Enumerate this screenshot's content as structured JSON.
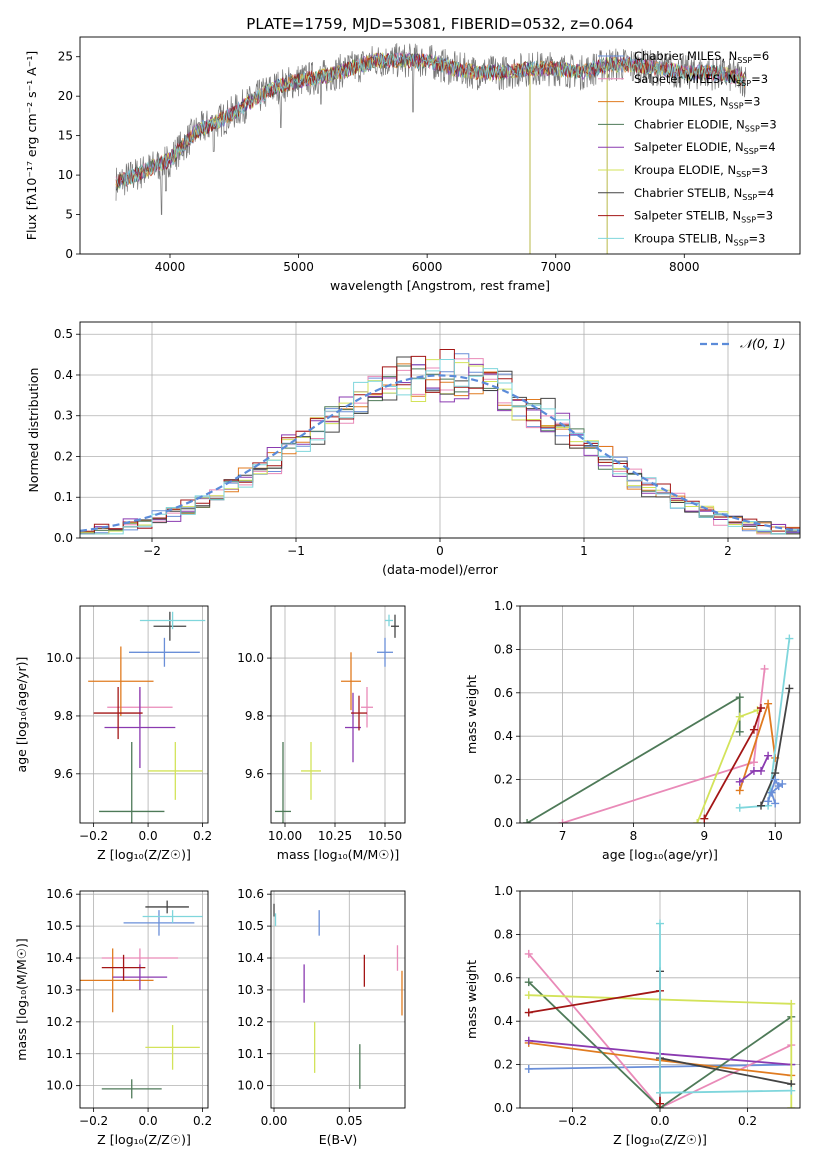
{
  "figure_title": "PLATE=1759, MJD=53081, FIBERID=0532, z=0.064",
  "colors": {
    "Chabrier MILES": "#6a8fd8",
    "Salpeter MILES": "#e98ab8",
    "Kroupa MILES": "#e07b20",
    "Chabrier ELODIE": "#4e7a58",
    "Salpeter ELODIE": "#8a3ab0",
    "Kroupa ELODIE": "#d3e35a",
    "Chabrier STELIB": "#444444",
    "Salpeter STELIB": "#a31616",
    "Kroupa STELIB": "#7fd6dc"
  },
  "legend_entries": [
    {
      "name": "Chabrier MILES",
      "nssp": "6"
    },
    {
      "name": "Salpeter MILES",
      "nssp": "3"
    },
    {
      "name": "Kroupa MILES",
      "nssp": "3"
    },
    {
      "name": "Chabrier ELODIE",
      "nssp": "3"
    },
    {
      "name": "Salpeter ELODIE",
      "nssp": "4"
    },
    {
      "name": "Kroupa ELODIE",
      "nssp": "3"
    },
    {
      "name": "Chabrier STELIB",
      "nssp": "4"
    },
    {
      "name": "Salpeter STELIB",
      "nssp": "3"
    },
    {
      "name": "Kroupa STELIB",
      "nssp": "3"
    }
  ],
  "chart_data": [
    {
      "id": "spectrum",
      "type": "line",
      "xlabel": "wavelength [Angstrom, rest frame]",
      "ylabel": "Flux [fλ10⁻¹⁷ erg cm⁻² s⁻¹ A⁻¹]",
      "xlim": [
        3300,
        8900
      ],
      "ylim": [
        0,
        27.5
      ],
      "xticks": [
        4000,
        5000,
        6000,
        7000,
        8000
      ],
      "yticks": [
        0,
        5,
        10,
        15,
        20,
        25
      ],
      "continuum": [
        [
          3580,
          9
        ],
        [
          3800,
          10.5
        ],
        [
          4000,
          12
        ],
        [
          4200,
          15.5
        ],
        [
          4400,
          17
        ],
        [
          4600,
          19
        ],
        [
          4800,
          21
        ],
        [
          5000,
          22
        ],
        [
          5200,
          22.5
        ],
        [
          5400,
          23.5
        ],
        [
          5600,
          24.5
        ],
        [
          5800,
          24.5
        ],
        [
          6000,
          24.5
        ],
        [
          6200,
          23.5
        ],
        [
          6400,
          23
        ],
        [
          6600,
          23
        ],
        [
          6800,
          23.5
        ],
        [
          7000,
          23.5
        ],
        [
          7200,
          23
        ],
        [
          7400,
          24
        ],
        [
          7600,
          24
        ],
        [
          7800,
          23.5
        ],
        [
          8000,
          23
        ],
        [
          8200,
          23
        ],
        [
          8400,
          22.5
        ],
        [
          8480,
          22
        ]
      ],
      "absorption_lines": [
        [
          3934,
          5
        ],
        [
          3968,
          8
        ],
        [
          4102,
          14
        ],
        [
          4340,
          13
        ],
        [
          4861,
          16
        ],
        [
          5175,
          19
        ],
        [
          5890,
          18
        ],
        [
          6563,
          21
        ],
        [
          6800,
          0
        ],
        [
          7400,
          0
        ],
        [
          6875,
          21.5
        ],
        [
          7600,
          22
        ]
      ]
    },
    {
      "id": "residuals",
      "type": "step",
      "xlabel": "(data-model)/error",
      "ylabel": "Normed distribution",
      "xlim": [
        -2.5,
        2.5
      ],
      "ylim": [
        0,
        0.53
      ],
      "xticks": [
        -2,
        -1,
        0,
        1,
        2
      ],
      "yticks": [
        0.0,
        0.1,
        0.2,
        0.3,
        0.4,
        0.5
      ],
      "legend_label": "𝒩(0, 1)",
      "bin_width": 0.1,
      "bin_start": -2.5
    },
    {
      "id": "age_vs_Z",
      "type": "scatter",
      "xlabel": "Z [log₁₀(Z/Z☉)]",
      "ylabel": "age  [log₁₀(age/yr)]",
      "xlim": [
        -0.25,
        0.22
      ],
      "ylim": [
        9.43,
        10.18
      ],
      "xticks": [
        -0.2,
        0.0,
        0.2
      ],
      "yticks": [
        9.6,
        9.8,
        10.0
      ],
      "points": [
        {
          "m": "Chabrier MILES",
          "x": 0.06,
          "y": 10.02,
          "ex": 0.13,
          "ey": 0.05
        },
        {
          "m": "Salpeter MILES",
          "x": -0.03,
          "y": 9.83,
          "ex": 0.12,
          "ey": 0.06
        },
        {
          "m": "Kroupa MILES",
          "x": -0.1,
          "y": 9.92,
          "ex": 0.12,
          "ey": 0.12
        },
        {
          "m": "Chabrier ELODIE",
          "x": -0.06,
          "y": 9.47,
          "ex": 0.12,
          "ey": 0.24
        },
        {
          "m": "Salpeter ELODIE",
          "x": -0.03,
          "y": 9.76,
          "ex": 0.13,
          "ey": 0.14
        },
        {
          "m": "Kroupa ELODIE",
          "x": 0.1,
          "y": 9.61,
          "ex": 0.1,
          "ey": 0.1
        },
        {
          "m": "Chabrier STELIB",
          "x": 0.08,
          "y": 10.11,
          "ex": 0.06,
          "ey": 0.05
        },
        {
          "m": "Salpeter STELIB",
          "x": -0.11,
          "y": 9.81,
          "ex": 0.09,
          "ey": 0.09
        },
        {
          "m": "Kroupa STELIB",
          "x": 0.09,
          "y": 10.13,
          "ex": 0.12,
          "ey": 0.03
        }
      ]
    },
    {
      "id": "age_vs_mass",
      "type": "scatter",
      "xlabel": "mass [log₁₀(M/M☉)]",
      "ylabel": "",
      "xlim": [
        9.93,
        10.6
      ],
      "ylim": [
        9.43,
        10.18
      ],
      "xticks": [
        10.0,
        10.25,
        10.5
      ],
      "ytick_labels": [
        9.6,
        9.8,
        10.0
      ],
      "points": [
        {
          "m": "Chabrier MILES",
          "x": 10.5,
          "y": 10.02,
          "ex": 0.04,
          "ey": 0.05
        },
        {
          "m": "Salpeter MILES",
          "x": 10.41,
          "y": 9.83,
          "ex": 0.03,
          "ey": 0.07
        },
        {
          "m": "Kroupa MILES",
          "x": 10.33,
          "y": 9.92,
          "ex": 0.05,
          "ey": 0.1
        },
        {
          "m": "Chabrier ELODIE",
          "x": 9.99,
          "y": 9.47,
          "ex": 0.04,
          "ey": 0.24
        },
        {
          "m": "Salpeter ELODIE",
          "x": 10.34,
          "y": 9.76,
          "ex": 0.04,
          "ey": 0.12
        },
        {
          "m": "Kroupa ELODIE",
          "x": 10.13,
          "y": 9.61,
          "ex": 0.05,
          "ey": 0.1
        },
        {
          "m": "Chabrier STELIB",
          "x": 10.55,
          "y": 10.11,
          "ex": 0.02,
          "ey": 0.04
        },
        {
          "m": "Salpeter STELIB",
          "x": 10.37,
          "y": 9.81,
          "ex": 0.04,
          "ey": 0.06
        },
        {
          "m": "Kroupa STELIB",
          "x": 10.52,
          "y": 10.13,
          "ex": 0.02,
          "ey": 0.02
        }
      ]
    },
    {
      "id": "weight_vs_age",
      "type": "line",
      "xlabel": "age  [log₁₀(age/yr)]",
      "ylabel": "mass weight",
      "xlim": [
        6.4,
        10.35
      ],
      "ylim": [
        0,
        1
      ],
      "xticks": [
        7,
        8,
        9,
        10
      ],
      "yticks": [
        0.0,
        0.2,
        0.4,
        0.6,
        0.8,
        1.0
      ],
      "series": [
        {
          "m": "Chabrier ELODIE",
          "pts": [
            [
              6.5,
              0.0
            ],
            [
              9.5,
              0.58
            ],
            [
              9.5,
              0.42
            ]
          ]
        },
        {
          "m": "Salpeter MILES",
          "pts": [
            [
              7.0,
              0.0
            ],
            [
              9.7,
              0.28
            ],
            [
              9.85,
              0.71
            ]
          ]
        },
        {
          "m": "Kroupa ELODIE",
          "pts": [
            [
              8.9,
              0.0
            ],
            [
              9.5,
              0.49
            ],
            [
              9.75,
              0.52
            ]
          ]
        },
        {
          "m": "Salpeter STELIB",
          "pts": [
            [
              9.0,
              0.02
            ],
            [
              9.7,
              0.43
            ],
            [
              9.8,
              0.53
            ]
          ]
        },
        {
          "m": "Kroupa MILES",
          "pts": [
            [
              9.5,
              0.15
            ],
            [
              9.9,
              0.55
            ],
            [
              10.0,
              0.3
            ]
          ]
        },
        {
          "m": "Salpeter ELODIE",
          "pts": [
            [
              9.5,
              0.19
            ],
            [
              9.7,
              0.24
            ],
            [
              9.8,
              0.24
            ],
            [
              9.9,
              0.31
            ]
          ]
        },
        {
          "m": "Kroupa STELIB",
          "pts": [
            [
              9.5,
              0.07
            ],
            [
              9.9,
              0.08
            ],
            [
              10.2,
              0.85
            ]
          ]
        },
        {
          "m": "Chabrier STELIB",
          "pts": [
            [
              9.8,
              0.08
            ],
            [
              10.0,
              0.23
            ],
            [
              10.2,
              0.62
            ]
          ]
        },
        {
          "m": "Chabrier MILES",
          "pts": [
            [
              9.9,
              0.1
            ],
            [
              10.0,
              0.2
            ],
            [
              10.05,
              0.17
            ],
            [
              10.1,
              0.18
            ],
            [
              9.95,
              0.14
            ],
            [
              10.0,
              0.09
            ]
          ]
        }
      ]
    },
    {
      "id": "mass_vs_Z",
      "type": "scatter",
      "xlabel": "Z [log₁₀(Z/Z☉)]",
      "ylabel": "mass [log₁₀(M/M☉)]",
      "xlim": [
        -0.25,
        0.22
      ],
      "ylim": [
        9.93,
        10.61
      ],
      "xticks": [
        -0.2,
        0.0,
        0.2
      ],
      "yticks": [
        10.0,
        10.1,
        10.2,
        10.3,
        10.4,
        10.5,
        10.6
      ],
      "points": [
        {
          "m": "Chabrier MILES",
          "x": 0.04,
          "y": 10.51,
          "ex": 0.13,
          "ey": 0.04
        },
        {
          "m": "Salpeter MILES",
          "x": -0.03,
          "y": 10.4,
          "ex": 0.14,
          "ey": 0.03
        },
        {
          "m": "Kroupa MILES",
          "x": -0.13,
          "y": 10.33,
          "ex": 0.15,
          "ey": 0.1
        },
        {
          "m": "Chabrier ELODIE",
          "x": -0.06,
          "y": 9.99,
          "ex": 0.11,
          "ey": 0.03
        },
        {
          "m": "Salpeter ELODIE",
          "x": -0.03,
          "y": 10.34,
          "ex": 0.1,
          "ey": 0.04
        },
        {
          "m": "Kroupa ELODIE",
          "x": 0.09,
          "y": 10.12,
          "ex": 0.1,
          "ey": 0.07
        },
        {
          "m": "Chabrier STELIB",
          "x": 0.07,
          "y": 10.56,
          "ex": 0.08,
          "ey": 0.02
        },
        {
          "m": "Salpeter STELIB",
          "x": -0.09,
          "y": 10.37,
          "ex": 0.08,
          "ey": 0.04
        },
        {
          "m": "Kroupa STELIB",
          "x": 0.09,
          "y": 10.53,
          "ex": 0.11,
          "ey": 0.02
        }
      ]
    },
    {
      "id": "mass_vs_ebv",
      "type": "scatter",
      "xlabel": "E(B-V)",
      "ylabel": "",
      "xlim": [
        -0.002,
        0.087
      ],
      "ylim": [
        9.93,
        10.61
      ],
      "xticks": [
        0.0,
        0.05
      ],
      "ytick_labels": [
        10.0,
        10.1,
        10.2,
        10.3,
        10.4,
        10.5,
        10.6
      ],
      "points": [
        {
          "m": "Chabrier MILES",
          "x": 0.03,
          "y": 10.51,
          "ex": 0,
          "ey": 0.04
        },
        {
          "m": "Salpeter MILES",
          "x": 0.082,
          "y": 10.4,
          "ex": 0,
          "ey": 0.04
        },
        {
          "m": "Kroupa MILES",
          "x": 0.085,
          "y": 10.29,
          "ex": 0,
          "ey": 0.07
        },
        {
          "m": "Chabrier ELODIE",
          "x": 0.057,
          "y": 10.06,
          "ex": 0,
          "ey": 0.07
        },
        {
          "m": "Salpeter ELODIE",
          "x": 0.02,
          "y": 10.32,
          "ex": 0,
          "ey": 0.06
        },
        {
          "m": "Kroupa ELODIE",
          "x": 0.027,
          "y": 10.12,
          "ex": 0,
          "ey": 0.08
        },
        {
          "m": "Chabrier STELIB",
          "x": 0.0,
          "y": 10.55,
          "ex": 0,
          "ey": 0.02
        },
        {
          "m": "Salpeter STELIB",
          "x": 0.06,
          "y": 10.36,
          "ex": 0,
          "ey": 0.05
        },
        {
          "m": "Kroupa STELIB",
          "x": 0.001,
          "y": 10.52,
          "ex": 0,
          "ey": 0.02
        }
      ]
    },
    {
      "id": "weight_vs_Z",
      "type": "line",
      "xlabel": "Z [log₁₀(Z/Z☉)]",
      "ylabel": "mass weight",
      "xlim": [
        -0.32,
        0.32
      ],
      "ylim": [
        0,
        1
      ],
      "xticks": [
        -0.2,
        0.0,
        0.2
      ],
      "yticks": [
        0.0,
        0.2,
        0.4,
        0.6,
        0.8,
        1.0
      ],
      "series": [
        {
          "m": "Chabrier MILES",
          "pts": [
            [
              -0.3,
              0.18
            ],
            [
              0.3,
              0.2
            ]
          ]
        },
        {
          "m": "Salpeter MILES",
          "pts": [
            [
              -0.3,
              0.71
            ],
            [
              0.0,
              0.0
            ],
            [
              0.3,
              0.29
            ]
          ]
        },
        {
          "m": "Kroupa MILES",
          "pts": [
            [
              -0.3,
              0.3
            ],
            [
              0.0,
              0.22
            ],
            [
              0.3,
              0.15
            ]
          ]
        },
        {
          "m": "Chabrier ELODIE",
          "pts": [
            [
              -0.3,
              0.58
            ],
            [
              0.0,
              0.0
            ],
            [
              0.3,
              0.42
            ]
          ]
        },
        {
          "m": "Salpeter ELODIE",
          "pts": [
            [
              -0.3,
              0.31
            ],
            [
              0.0,
              0.25
            ],
            [
              0.3,
              0.2
            ]
          ]
        },
        {
          "m": "Kroupa ELODIE",
          "pts": [
            [
              -0.3,
              0.52
            ],
            [
              0.3,
              0.48
            ],
            [
              0.3,
              0.0
            ]
          ]
        },
        {
          "m": "Chabrier STELIB",
          "pts": [
            [
              0.0,
              0.63
            ],
            [
              0.0,
              0.23
            ],
            [
              0.3,
              0.11
            ]
          ]
        },
        {
          "m": "Salpeter STELIB",
          "pts": [
            [
              -0.3,
              0.44
            ],
            [
              0.0,
              0.54
            ],
            [
              0.0,
              0.02
            ]
          ]
        },
        {
          "m": "Kroupa STELIB",
          "pts": [
            [
              0.0,
              0.85
            ],
            [
              0.0,
              0.07
            ],
            [
              0.3,
              0.08
            ]
          ]
        }
      ]
    }
  ]
}
